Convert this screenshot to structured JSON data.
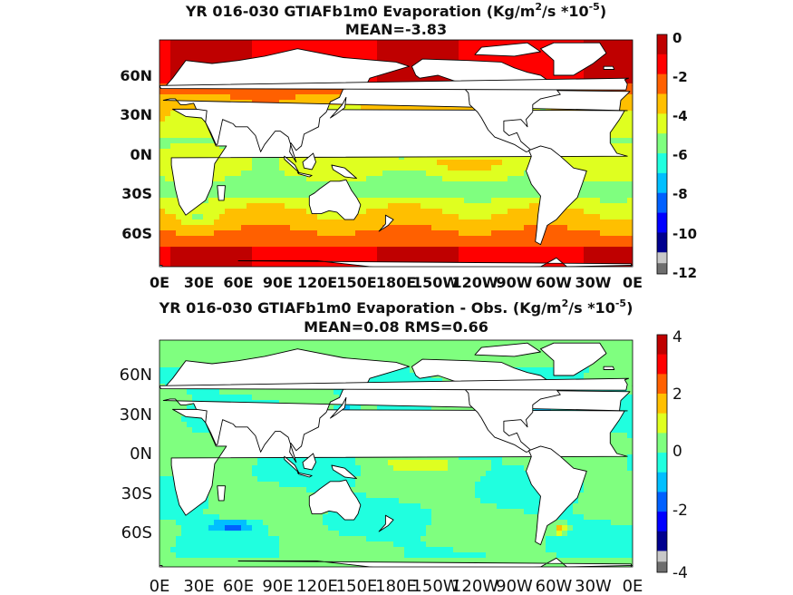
{
  "panels": [
    {
      "title_prefix": "YR 016-030 GTIAFb1m0  Evaporation (Kg/m",
      "title_sup1": "2",
      "title_mid": "/s *10",
      "title_sup2": "-5",
      "title_suffix": ")",
      "subtitle": "MEAN=-3.83",
      "lat_labels": [
        "60N",
        "30N",
        "0N",
        "30S",
        "60S"
      ],
      "lon_labels": [
        "0E",
        "30E",
        "60E",
        "90E",
        "120E",
        "150E",
        "180E",
        "150W",
        "120W",
        "90W",
        "60W",
        "30W",
        "0E"
      ],
      "colorbar_ticks": [
        "0",
        "-2",
        "-4",
        "-6",
        "-8",
        "-10",
        "-12"
      ],
      "colorbar_range": [
        -12,
        0
      ],
      "field_type": "absolute"
    },
    {
      "title_prefix": "YR 016-030 GTIAFb1m0 Evaporation - Obs. (Kg/m",
      "title_sup1": "2",
      "title_mid": "/s *10",
      "title_sup2": "-5",
      "title_suffix": ")",
      "subtitle": "MEAN=0.08   RMS=0.66",
      "lat_labels": [
        "60N",
        "30N",
        "0N",
        "30S",
        "60S"
      ],
      "lon_labels": [
        "0E",
        "30E",
        "60E",
        "90E",
        "120E",
        "150E",
        "180E",
        "150W",
        "120W",
        "90W",
        "60W",
        "30W",
        "0E"
      ],
      "colorbar_ticks": [
        "4",
        "2",
        "0",
        "-2",
        "-4"
      ],
      "colorbar_range": [
        -4,
        4
      ],
      "field_type": "difference"
    }
  ],
  "colors": {
    "jet": [
      "#00008f",
      "#0000ff",
      "#0060ff",
      "#00bfff",
      "#20ffdf",
      "#7fff7f",
      "#dfff20",
      "#ffbf00",
      "#ff6000",
      "#ff0000",
      "#bf0000"
    ],
    "missing_gray": "#c8c8c8",
    "low_gray": "#6e6e6e",
    "land": "#ffffff",
    "coast": "#000000"
  }
}
